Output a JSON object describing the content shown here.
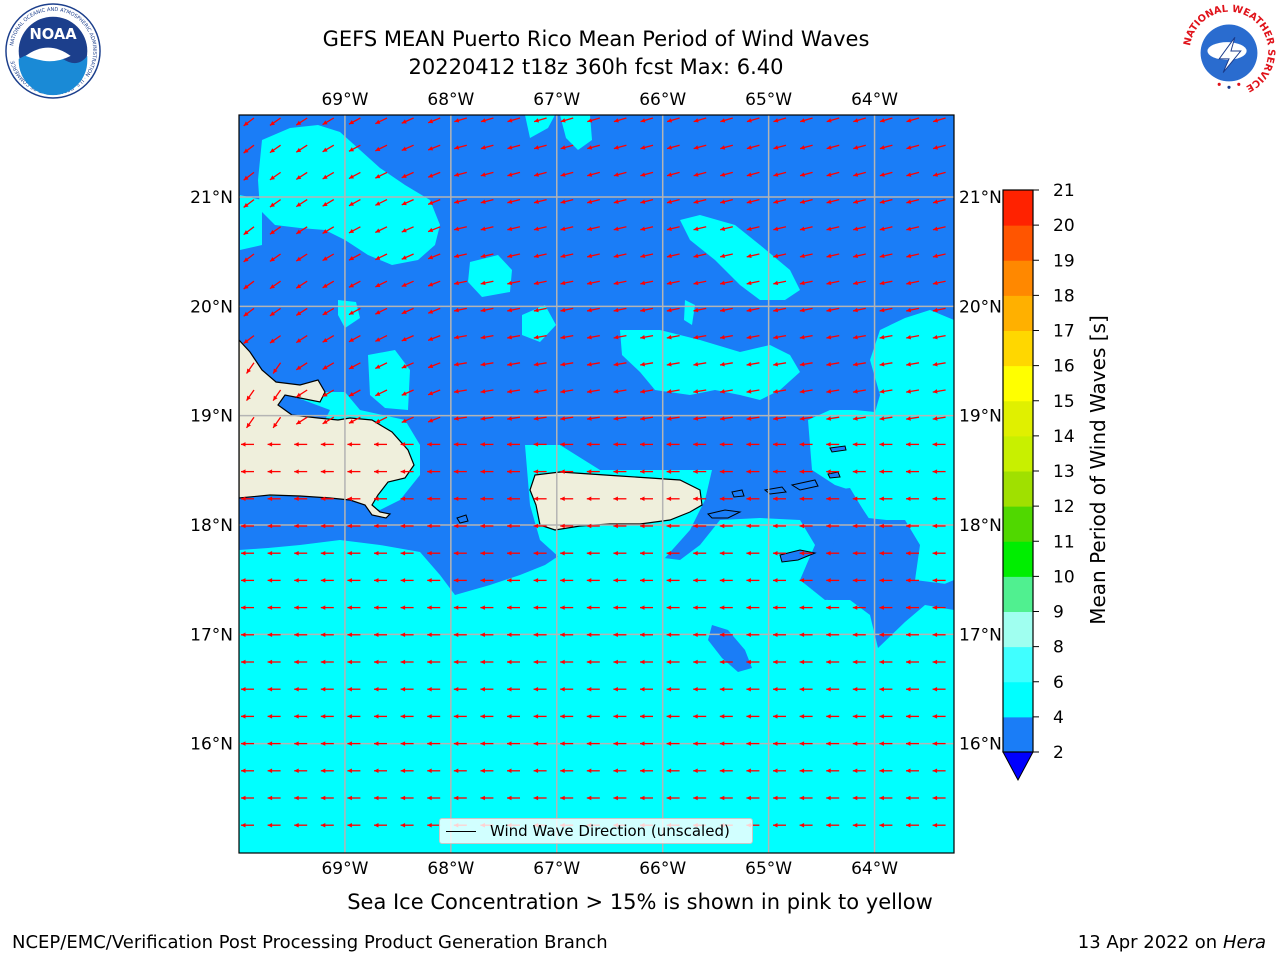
{
  "header": {
    "title_line1": "GEFS MEAN Puerto Rico Mean Period of Wind Waves",
    "title_line2": "20220412 t18z 360h fcst   Max: 6.40"
  },
  "logos": {
    "noaa_icon": "noaa-logo",
    "noaa_text": "NOAA",
    "noaa_ring_text": "NATIONAL OCEANIC AND ATMOSPHERIC ADMINISTRATION · U.S. DEPARTMENT OF COMMERCE",
    "nws_icon": "national-weather-service-logo",
    "nws_ring_text": "NATIONAL WEATHER SERVICE"
  },
  "map": {
    "lon_ticks": [
      "69°W",
      "68°W",
      "67°W",
      "66°W",
      "65°W",
      "64°W"
    ],
    "lat_ticks": [
      "21°N",
      "20°N",
      "19°N",
      "18°N",
      "17°N",
      "16°N"
    ],
    "lon_values": [
      -69,
      -68,
      -67,
      -66,
      -65,
      -64
    ],
    "lat_values": [
      21,
      20,
      19,
      18,
      17,
      16
    ],
    "extent": {
      "lon_min": -70.0,
      "lon_max": -63.25,
      "lat_min": 15.0,
      "lat_max": 21.75
    },
    "colors": {
      "land": "#efefdc",
      "ocean_low": "#1a7df7",
      "ocean_mid": "#00ffff",
      "arrow": "#ff0000",
      "grid": "#b4b4b4"
    }
  },
  "colorbar": {
    "label": "Mean Period of Wind Waves [s]",
    "ticks": [
      "2",
      "4",
      "6",
      "8",
      "9",
      "10",
      "11",
      "12",
      "13",
      "14",
      "15",
      "16",
      "17",
      "18",
      "19",
      "20",
      "21"
    ],
    "levels": [
      2,
      4,
      6,
      8,
      9,
      10,
      11,
      12,
      13,
      14,
      15,
      16,
      17,
      18,
      19,
      20,
      21
    ],
    "colors": [
      "#1a7df7",
      "#00ffff",
      "#40ffff",
      "#a0fff0",
      "#50f090",
      "#00ee00",
      "#50d800",
      "#a0e000",
      "#c8f000",
      "#e0f000",
      "#ffff00",
      "#ffd700",
      "#ffb000",
      "#ff8800",
      "#ff5500",
      "#ff2200",
      "#ff0000"
    ],
    "under_color": "#0000ff"
  },
  "legend": {
    "label": "Wind Wave Direction (unscaled)"
  },
  "caption": "Sea Ice Concentration > 15% is shown in pink to yellow",
  "footer": {
    "left": "NCEP/EMC/Verification Post Processing Product Generation Branch",
    "right_prefix": "13 Apr 2022 on ",
    "right_host": "Hera"
  }
}
